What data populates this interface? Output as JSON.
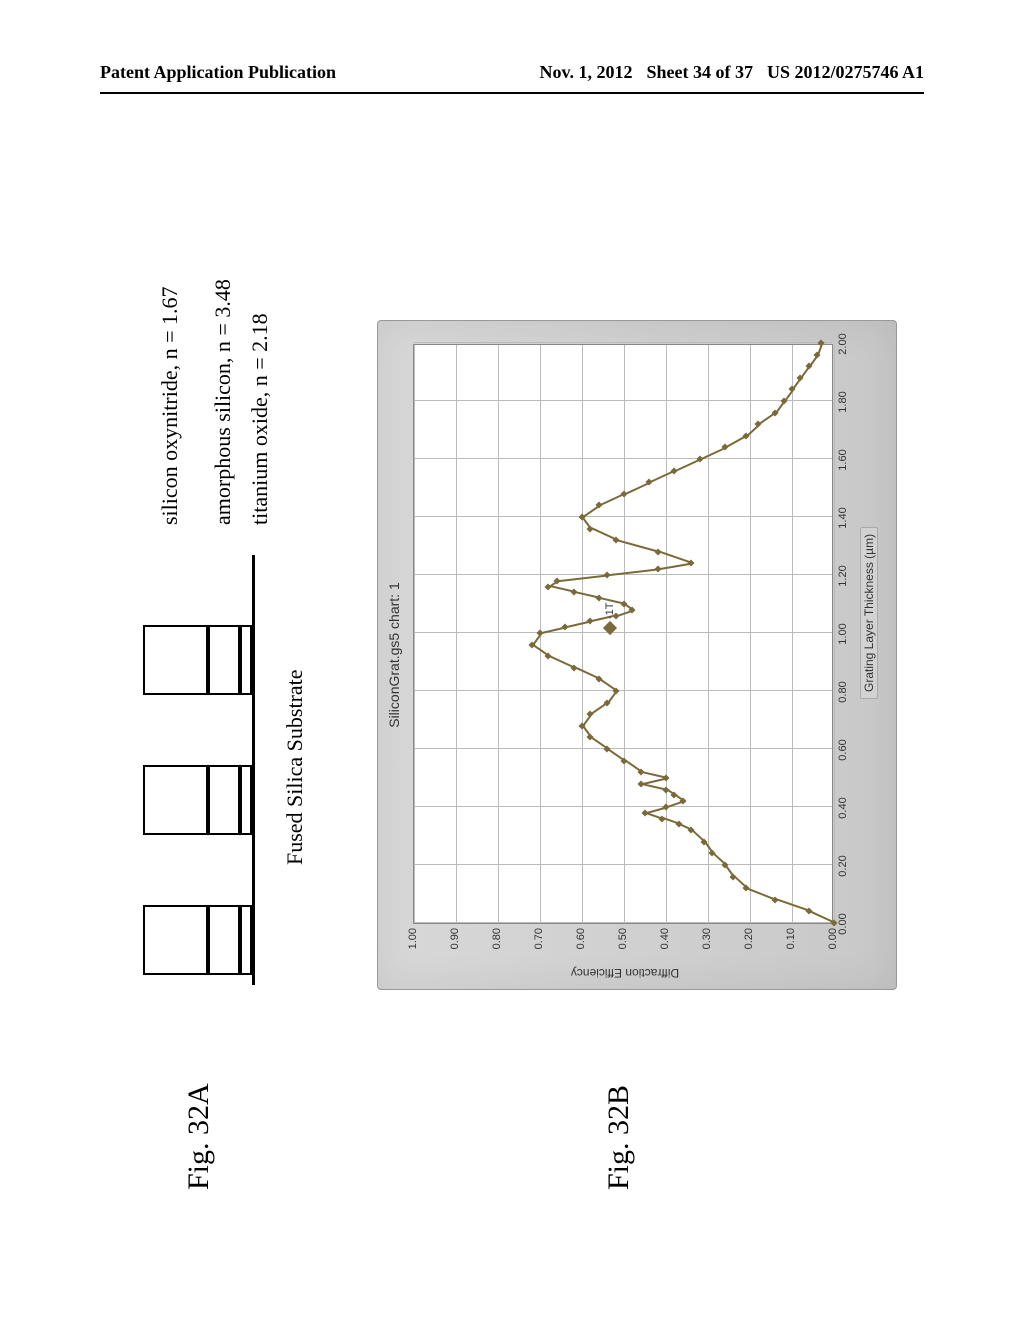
{
  "header": {
    "left": "Patent Application Publication",
    "date": "Nov. 1, 2012",
    "sheet": "Sheet 34 of 37",
    "pubno": "US 2012/0275746 A1"
  },
  "figA": {
    "label": "Fig. 32A",
    "layers": [
      {
        "name": "silicon oxynitride",
        "n": "1.67"
      },
      {
        "name": "amorphous silicon",
        "n": "3.48"
      },
      {
        "name": "titanium oxide",
        "n": "2.18"
      }
    ],
    "substrate": "Fused Silica Substrate",
    "colors": {
      "stroke": "#000000",
      "bg": "#ffffff"
    },
    "layout": {
      "tooth_width": 70,
      "gap": 70,
      "oxynitride_h": 65,
      "asilicon_h": 32,
      "tioxide_h": 12,
      "n_teeth": 3
    }
  },
  "figB": {
    "label": "Fig. 32B",
    "chart": {
      "type": "line",
      "title": "SiliconGrat.gs5 chart: 1",
      "xlabel": "Grating Layer Thickness (µm)",
      "ylabel": "Diffraction Efficiency",
      "xlim": [
        0.0,
        2.0
      ],
      "ylim": [
        0.0,
        1.0
      ],
      "xtick_step": 0.2,
      "ytick_step": 0.1,
      "xtick_labels": [
        "0.00",
        "0.20",
        "0.40",
        "0.60",
        "0.80",
        "1.00",
        "1.20",
        "1.40",
        "1.60",
        "1.80",
        "2.00"
      ],
      "ytick_labels": [
        "0.00",
        "0.10",
        "0.20",
        "0.30",
        "0.40",
        "0.50",
        "0.60",
        "0.70",
        "0.80",
        "0.90",
        "1.00"
      ],
      "legend_label": "-1T",
      "series_color": "#7a6a3a",
      "marker_color": "#7a6a3a",
      "marker_style": "diamond",
      "marker_size": 5,
      "line_width": 1.5,
      "background_color": "#d0d0d0",
      "plot_bg": "#ffffff",
      "grid_color": "#bbbbbb",
      "title_fontsize": 14,
      "label_fontsize": 12,
      "tick_fontsize": 11,
      "data": [
        [
          0.0,
          0.0
        ],
        [
          0.04,
          0.06
        ],
        [
          0.08,
          0.14
        ],
        [
          0.12,
          0.21
        ],
        [
          0.16,
          0.24
        ],
        [
          0.2,
          0.26
        ],
        [
          0.24,
          0.29
        ],
        [
          0.28,
          0.31
        ],
        [
          0.32,
          0.34
        ],
        [
          0.34,
          0.37
        ],
        [
          0.36,
          0.41
        ],
        [
          0.38,
          0.45
        ],
        [
          0.4,
          0.4
        ],
        [
          0.42,
          0.36
        ],
        [
          0.44,
          0.38
        ],
        [
          0.46,
          0.4
        ],
        [
          0.48,
          0.46
        ],
        [
          0.5,
          0.4
        ],
        [
          0.52,
          0.46
        ],
        [
          0.56,
          0.5
        ],
        [
          0.6,
          0.54
        ],
        [
          0.64,
          0.58
        ],
        [
          0.68,
          0.6
        ],
        [
          0.72,
          0.58
        ],
        [
          0.76,
          0.54
        ],
        [
          0.8,
          0.52
        ],
        [
          0.84,
          0.56
        ],
        [
          0.88,
          0.62
        ],
        [
          0.92,
          0.68
        ],
        [
          0.96,
          0.72
        ],
        [
          1.0,
          0.7
        ],
        [
          1.02,
          0.64
        ],
        [
          1.04,
          0.58
        ],
        [
          1.06,
          0.52
        ],
        [
          1.08,
          0.48
        ],
        [
          1.1,
          0.5
        ],
        [
          1.12,
          0.56
        ],
        [
          1.14,
          0.62
        ],
        [
          1.16,
          0.68
        ],
        [
          1.18,
          0.66
        ],
        [
          1.2,
          0.54
        ],
        [
          1.22,
          0.42
        ],
        [
          1.24,
          0.34
        ],
        [
          1.28,
          0.42
        ],
        [
          1.32,
          0.52
        ],
        [
          1.36,
          0.58
        ],
        [
          1.4,
          0.6
        ],
        [
          1.44,
          0.56
        ],
        [
          1.48,
          0.5
        ],
        [
          1.52,
          0.44
        ],
        [
          1.56,
          0.38
        ],
        [
          1.6,
          0.32
        ],
        [
          1.64,
          0.26
        ],
        [
          1.68,
          0.21
        ],
        [
          1.72,
          0.18
        ],
        [
          1.76,
          0.14
        ],
        [
          1.8,
          0.12
        ],
        [
          1.84,
          0.1
        ],
        [
          1.88,
          0.08
        ],
        [
          1.92,
          0.06
        ],
        [
          1.96,
          0.04
        ],
        [
          2.0,
          0.03
        ]
      ]
    }
  }
}
